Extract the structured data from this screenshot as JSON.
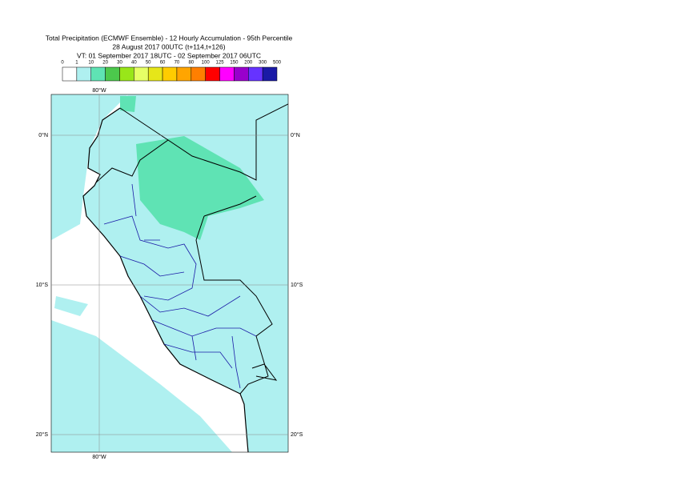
{
  "header": {
    "title_lines": [
      "Total Precipitation (ECMWF Ensemble) - 12 Hourly Accumulation - 95th Percentile",
      "28 August 2017 00UTC (t+114,t+126)",
      "VT: 01 September 2017 18UTC - 02 September 2017 06UTC"
    ]
  },
  "legend": {
    "levels": [
      "0",
      "1",
      "10",
      "20",
      "30",
      "40",
      "50",
      "60",
      "70",
      "80",
      "100",
      "125",
      "150",
      "200",
      "300",
      "500"
    ],
    "colors": [
      "#ffffff",
      "#aff0f0",
      "#5fe3b4",
      "#4cc84c",
      "#99e619",
      "#e6ff66",
      "#e6e619",
      "#ffcc00",
      "#ffa500",
      "#ff7f00",
      "#ff0000",
      "#ff00ff",
      "#9900cc",
      "#6633ff",
      "#1a1aa6",
      "#0a0a55"
    ]
  },
  "map": {
    "lon_label": "80°W",
    "lat_labels": [
      "0°N",
      "10°S",
      "20°S"
    ]
  }
}
